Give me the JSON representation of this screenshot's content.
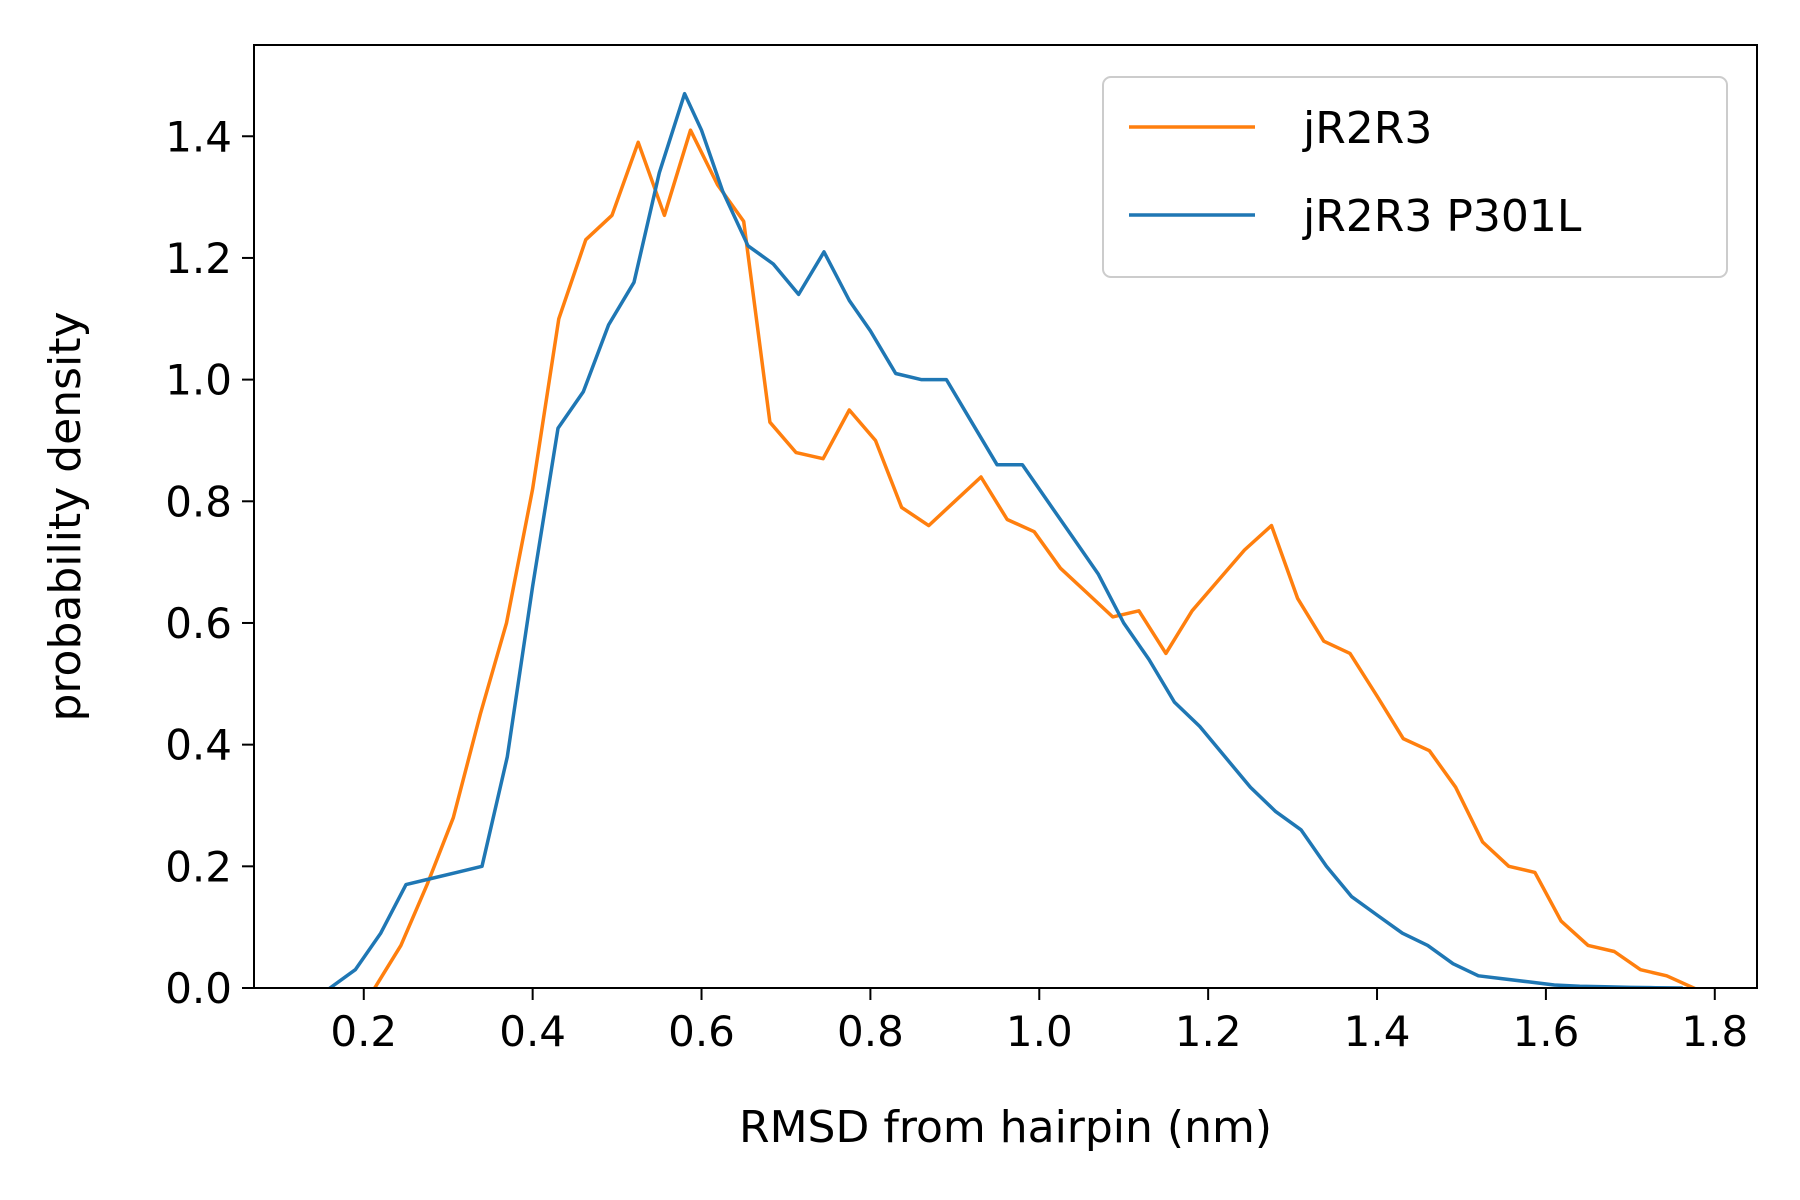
{
  "chart_data": {
    "type": "line",
    "xlabel": "RMSD from hairpin (nm)",
    "ylabel": "probability density",
    "xlim": [
      0.07,
      1.85
    ],
    "ylim": [
      0.0,
      1.55
    ],
    "xticks": [
      0.2,
      0.4,
      0.6,
      0.8,
      1.0,
      1.2,
      1.4,
      1.6,
      1.8
    ],
    "xtick_labels": [
      "0.2",
      "0.4",
      "0.6",
      "0.8",
      "1.0",
      "1.2",
      "1.4",
      "1.6",
      "1.8"
    ],
    "yticks": [
      0.0,
      0.2,
      0.4,
      0.6,
      0.8,
      1.0,
      1.2,
      1.4
    ],
    "ytick_labels": [
      "0.0",
      "0.2",
      "0.4",
      "0.6",
      "0.8",
      "1.0",
      "1.2",
      "1.4"
    ],
    "grid": false,
    "legend_position": "top-right",
    "series": [
      {
        "name": "jR2R3",
        "color": "#ff7f0e",
        "x": [
          0.213,
          0.244,
          0.275,
          0.306,
          0.338,
          0.369,
          0.4,
          0.431,
          0.463,
          0.494,
          0.525,
          0.556,
          0.587,
          0.619,
          0.65,
          0.681,
          0.712,
          0.744,
          0.775,
          0.806,
          0.837,
          0.869,
          0.9,
          0.931,
          0.962,
          0.994,
          1.025,
          1.056,
          1.087,
          1.118,
          1.15,
          1.181,
          1.212,
          1.243,
          1.275,
          1.306,
          1.337,
          1.368,
          1.4,
          1.431,
          1.462,
          1.493,
          1.525,
          1.556,
          1.587,
          1.618,
          1.65,
          1.681,
          1.712,
          1.743,
          1.775
        ],
        "y": [
          0.0,
          0.07,
          0.17,
          0.28,
          0.45,
          0.6,
          0.82,
          1.1,
          1.23,
          1.27,
          1.39,
          1.27,
          1.41,
          1.32,
          1.26,
          0.93,
          0.88,
          0.87,
          0.95,
          0.9,
          0.79,
          0.76,
          0.8,
          0.84,
          0.77,
          0.75,
          0.69,
          0.65,
          0.61,
          0.62,
          0.55,
          0.62,
          0.67,
          0.72,
          0.76,
          0.64,
          0.57,
          0.55,
          0.48,
          0.41,
          0.39,
          0.33,
          0.24,
          0.2,
          0.19,
          0.11,
          0.07,
          0.06,
          0.03,
          0.02,
          0.0
        ]
      },
      {
        "name": "jR2R3 P301L",
        "color": "#1f77b4",
        "x": [
          0.16,
          0.19,
          0.22,
          0.25,
          0.28,
          0.31,
          0.34,
          0.37,
          0.4,
          0.43,
          0.46,
          0.49,
          0.52,
          0.55,
          0.58,
          0.6,
          0.625,
          0.655,
          0.685,
          0.715,
          0.745,
          0.775,
          0.8,
          0.83,
          0.86,
          0.89,
          0.92,
          0.95,
          0.98,
          1.01,
          1.04,
          1.07,
          1.1,
          1.13,
          1.16,
          1.19,
          1.22,
          1.25,
          1.28,
          1.31,
          1.34,
          1.37,
          1.4,
          1.43,
          1.46,
          1.49,
          1.52,
          1.55,
          1.58,
          1.61,
          1.64,
          1.67,
          1.7,
          1.73,
          1.76
        ],
        "y": [
          0.0,
          0.03,
          0.09,
          0.17,
          0.18,
          0.19,
          0.2,
          0.38,
          0.66,
          0.92,
          0.98,
          1.09,
          1.16,
          1.34,
          1.47,
          1.41,
          1.31,
          1.22,
          1.19,
          1.14,
          1.21,
          1.13,
          1.08,
          1.01,
          1.0,
          1.0,
          0.93,
          0.86,
          0.86,
          0.8,
          0.74,
          0.68,
          0.6,
          0.54,
          0.47,
          0.43,
          0.38,
          0.33,
          0.29,
          0.26,
          0.2,
          0.15,
          0.12,
          0.09,
          0.07,
          0.04,
          0.02,
          0.015,
          0.01,
          0.005,
          0.003,
          0.002,
          0.001,
          0.0005,
          0.0
        ]
      }
    ]
  }
}
